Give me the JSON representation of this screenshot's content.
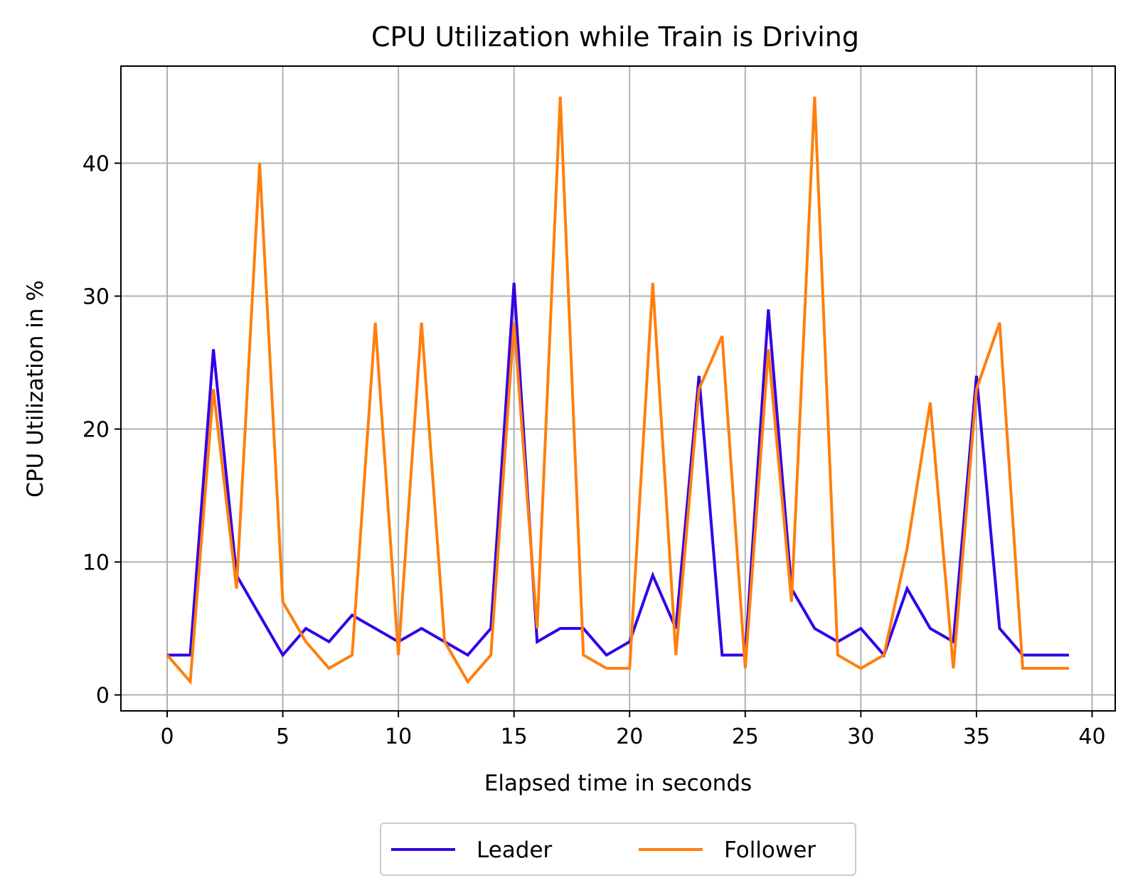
{
  "chart_data": {
    "type": "line",
    "title": "CPU Utilization while Train is Driving",
    "xlabel": "Elapsed time in seconds",
    "ylabel": "CPU Utilization in %",
    "xlim": [
      -2,
      41
    ],
    "ylim": [
      -1.2,
      47.3
    ],
    "xticks": [
      0,
      5,
      10,
      15,
      20,
      25,
      30,
      35,
      40
    ],
    "yticks": [
      0,
      10,
      20,
      30,
      40
    ],
    "grid": true,
    "legend_position": "bottom-center",
    "x": [
      0,
      1,
      2,
      3,
      4,
      5,
      6,
      7,
      8,
      9,
      10,
      11,
      12,
      13,
      14,
      15,
      16,
      17,
      18,
      19,
      20,
      21,
      22,
      23,
      24,
      25,
      26,
      27,
      28,
      29,
      30,
      31,
      32,
      33,
      34,
      35,
      36,
      37,
      38,
      39
    ],
    "series": [
      {
        "name": "Leader",
        "color": "#3300e6",
        "values": [
          3,
          3,
          26,
          9,
          6,
          3,
          5,
          4,
          6,
          5,
          4,
          5,
          4,
          3,
          5,
          31,
          4,
          5,
          5,
          3,
          4,
          9,
          5,
          24,
          3,
          3,
          29,
          8,
          5,
          4,
          5,
          3,
          8,
          5,
          4,
          24,
          5,
          3,
          3,
          3
        ]
      },
      {
        "name": "Follower",
        "color": "#ff7f0e",
        "values": [
          3,
          1,
          23,
          8,
          40,
          7,
          4,
          2,
          3,
          28,
          3,
          28,
          4,
          1,
          3,
          28,
          5,
          45,
          3,
          2,
          2,
          31,
          3,
          23,
          27,
          2,
          26,
          7,
          45,
          3,
          2,
          3,
          11,
          22,
          2,
          23,
          28,
          2,
          2,
          2
        ]
      }
    ]
  }
}
